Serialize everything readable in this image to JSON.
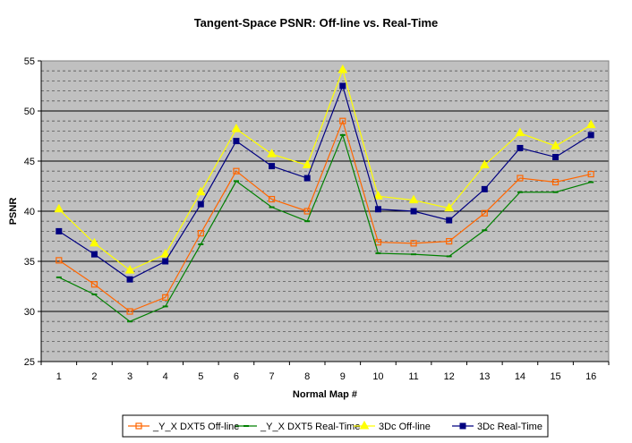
{
  "chart_data": {
    "type": "line",
    "title": "Tangent-Space PSNR: Off-line vs. Real-Time",
    "xlabel": "Normal Map #",
    "ylabel": "PSNR",
    "ylim": [
      25,
      55
    ],
    "yticks": [
      "25",
      "30",
      "35",
      "40",
      "45",
      "50",
      "55"
    ],
    "categories": [
      "1",
      "2",
      "3",
      "4",
      "5",
      "6",
      "7",
      "8",
      "9",
      "10",
      "11",
      "12",
      "13",
      "14",
      "15",
      "16"
    ],
    "grid": true,
    "legend_position": "bottom",
    "plot_background": "#C0C0C0",
    "series": [
      {
        "name": "_Y_X DXT5 Off-line",
        "color": "#FF6600",
        "marker": "open-square",
        "values": [
          35.1,
          32.7,
          30.0,
          31.4,
          37.8,
          44.0,
          41.2,
          40.0,
          49.0,
          36.9,
          36.8,
          37.0,
          39.8,
          43.3,
          42.9,
          43.7
        ]
      },
      {
        "name": "_Y_X DXT5 Real-Time",
        "color": "#008000",
        "marker": "dash",
        "values": [
          33.4,
          31.7,
          29.0,
          30.5,
          36.7,
          43.0,
          40.4,
          39.0,
          47.6,
          35.8,
          35.7,
          35.5,
          38.1,
          41.9,
          41.9,
          42.9
        ]
      },
      {
        "name": "3Dc Off-line",
        "color": "#FFFF00",
        "marker": "triangle",
        "values": [
          40.2,
          36.8,
          34.1,
          35.7,
          41.9,
          48.2,
          45.7,
          44.6,
          54.1,
          41.5,
          41.1,
          40.3,
          44.6,
          47.8,
          46.5,
          48.6
        ]
      },
      {
        "name": "3Dc Real-Time",
        "color": "#000080",
        "marker": "filled-square",
        "values": [
          38.0,
          35.7,
          33.2,
          35.0,
          40.7,
          47.0,
          44.5,
          43.3,
          52.5,
          40.2,
          40.0,
          39.1,
          42.2,
          46.3,
          45.4,
          47.6
        ]
      }
    ]
  }
}
